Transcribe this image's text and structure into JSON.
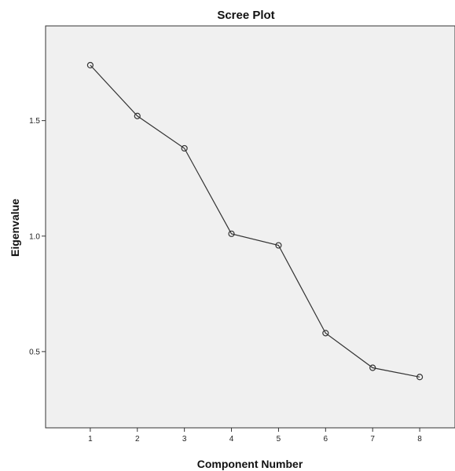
{
  "chart_data": {
    "type": "line",
    "title": "Scree Plot",
    "xlabel": "Component Number",
    "ylabel": "Eigenvalue",
    "x": [
      1,
      2,
      3,
      4,
      5,
      6,
      7,
      8
    ],
    "values": [
      1.74,
      1.52,
      1.38,
      1.01,
      0.96,
      0.58,
      0.43,
      0.39
    ],
    "xticks": [
      "1",
      "2",
      "3",
      "4",
      "5",
      "6",
      "7",
      "8"
    ],
    "yticks": [
      0.5,
      1.0,
      1.5
    ],
    "ytick_labels": [
      "0.5",
      "1.0",
      "1.5"
    ],
    "xlim": [
      0.05,
      8.75
    ],
    "ylim": [
      0.17,
      1.91
    ],
    "grid": false,
    "marker": "open-circle",
    "colors": {
      "line": "#333333",
      "plot_background": "#f0f0f0"
    }
  }
}
